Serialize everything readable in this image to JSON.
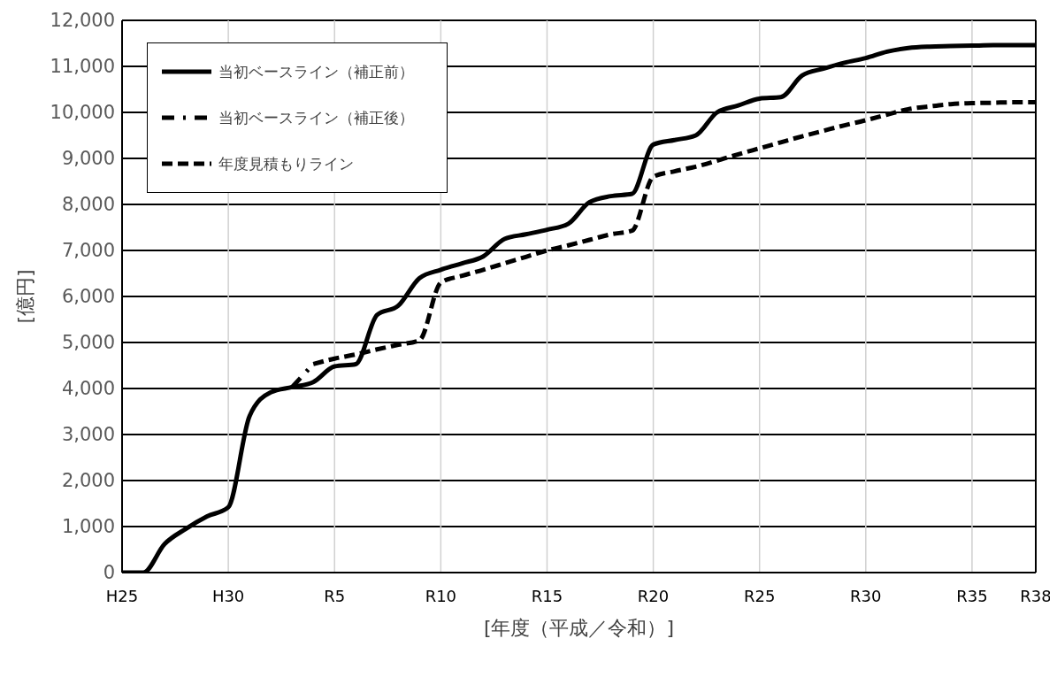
{
  "chart_data": {
    "type": "line",
    "xlabel": "[年度（平成／令和）]",
    "ylabel": "[億円]",
    "categories": [
      "H25",
      null,
      null,
      null,
      null,
      "H30",
      null,
      null,
      null,
      null,
      "R5",
      null,
      null,
      null,
      null,
      "R10",
      null,
      null,
      null,
      null,
      "R15",
      null,
      null,
      null,
      null,
      "R20",
      null,
      null,
      null,
      null,
      "R25",
      null,
      null,
      null,
      null,
      "R30",
      null,
      null,
      null,
      null,
      "R35",
      null,
      null,
      "R38"
    ],
    "ylim": [
      0,
      12000
    ],
    "yticks": [
      0,
      {
        "value": 1000,
        "label": "1,000"
      },
      {
        "value": 2000,
        "label": "2,000"
      },
      {
        "value": 3000,
        "label": "3,000"
      },
      {
        "value": 4000,
        "label": "4,000"
      },
      {
        "value": 5000,
        "label": "5,000"
      },
      {
        "value": 6000,
        "label": "6,000"
      },
      {
        "value": 7000,
        "label": "7,000"
      },
      {
        "value": 8000,
        "label": "8,000"
      },
      {
        "value": 9000,
        "label": "9,000"
      },
      {
        "value": 10000,
        "label": "10,000"
      },
      {
        "value": 11000,
        "label": "11,000"
      },
      {
        "value": 12000,
        "label": "12,000"
      }
    ],
    "grid": true,
    "legend": "top left",
    "marker": "none",
    "series": [
      {
        "name": "当初ベースライン（補正前）",
        "color": "#000000",
        "line_style": "solid",
        "values": [
          0,
          0,
          620,
          950,
          1220,
          1420,
          3400,
          3920,
          4030,
          4140,
          4480,
          4530,
          5600,
          5800,
          6400,
          6580,
          6720,
          6870,
          7250,
          7350,
          7450,
          7580,
          8050,
          8180,
          8230,
          9300,
          9400,
          9500,
          10000,
          10150,
          10300,
          10330,
          10800,
          10950,
          11080,
          11180,
          11320,
          11400,
          11430,
          11440,
          11450,
          11460,
          11460,
          11460
        ]
      },
      {
        "name": "当初ベースライン（補正後）",
        "color": "#000000",
        "line_style": "dashdot",
        "values": [
          null,
          null,
          null,
          null,
          null,
          null,
          null,
          null,
          4030,
          4530,
          null,
          null,
          null,
          null,
          null,
          null,
          null,
          null,
          null,
          null,
          null,
          null,
          null,
          null,
          null,
          null,
          null,
          null,
          null,
          null,
          null,
          null,
          null,
          null,
          null,
          null,
          null,
          null,
          null,
          null,
          null,
          null,
          null,
          null
        ]
      },
      {
        "name": "年度見積もりライン",
        "color": "#000000",
        "line_style": "dashed",
        "values": [
          null,
          null,
          null,
          null,
          null,
          null,
          null,
          null,
          null,
          4530,
          4650,
          4740,
          4850,
          4950,
          5050,
          6300,
          6450,
          6580,
          6720,
          6860,
          7000,
          7110,
          7230,
          7350,
          7430,
          8600,
          8720,
          8820,
          8950,
          9090,
          9220,
          9350,
          9480,
          9600,
          9720,
          9830,
          9950,
          10070,
          10130,
          10180,
          10200,
          10210,
          10220,
          10220
        ]
      }
    ]
  }
}
